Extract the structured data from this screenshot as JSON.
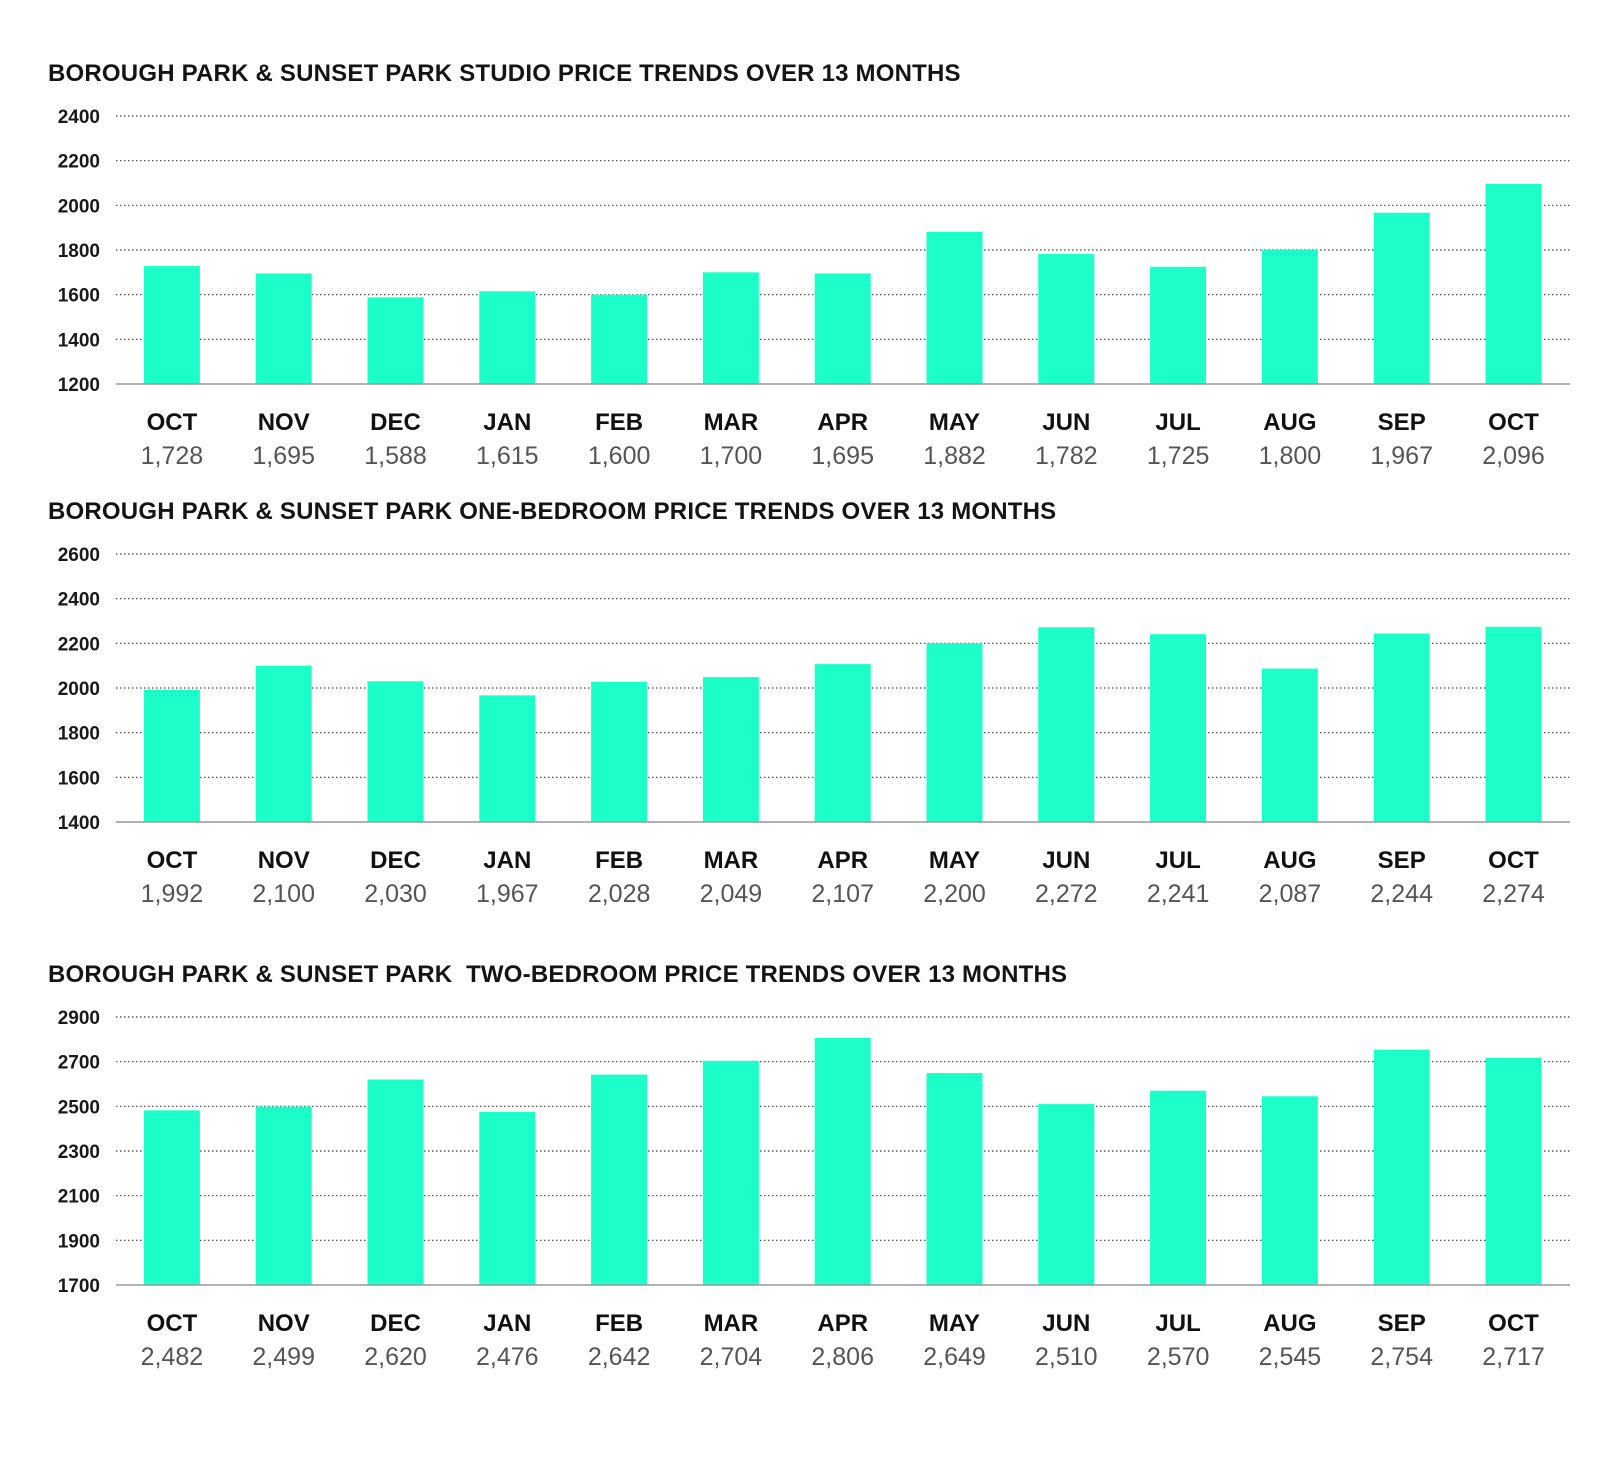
{
  "colors": {
    "bar": "#1dffc8",
    "grid": "#444444",
    "axis": "#999999"
  },
  "chart_data": [
    {
      "type": "bar",
      "title": "BOROUGH PARK & SUNSET PARK STUDIO PRICE TRENDS OVER 13 MONTHS",
      "categories": [
        "OCT",
        "NOV",
        "DEC",
        "JAN",
        "FEB",
        "MAR",
        "APR",
        "MAY",
        "JUN",
        "JUL",
        "AUG",
        "SEP",
        "OCT"
      ],
      "values": [
        1728,
        1695,
        1588,
        1615,
        1600,
        1700,
        1695,
        1882,
        1782,
        1725,
        1800,
        1967,
        2096
      ],
      "value_labels": [
        "1,728",
        "1,695",
        "1,588",
        "1,615",
        "1,600",
        "1,700",
        "1,695",
        "1,882",
        "1,782",
        "1,725",
        "1,800",
        "1,967",
        "2,096"
      ],
      "yticks": [
        1200,
        1400,
        1600,
        1800,
        2000,
        2200,
        2400
      ],
      "ylim": [
        1200,
        2400
      ],
      "xlabel": "",
      "ylabel": "",
      "grid": true
    },
    {
      "type": "bar",
      "title": "BOROUGH PARK & SUNSET PARK ONE-BEDROOM PRICE TRENDS OVER 13 MONTHS",
      "categories": [
        "OCT",
        "NOV",
        "DEC",
        "JAN",
        "FEB",
        "MAR",
        "APR",
        "MAY",
        "JUN",
        "JUL",
        "AUG",
        "SEP",
        "OCT"
      ],
      "values": [
        1992,
        2100,
        2030,
        1967,
        2028,
        2049,
        2107,
        2200,
        2272,
        2241,
        2087,
        2244,
        2274
      ],
      "value_labels": [
        "1,992",
        "2,100",
        "2,030",
        "1,967",
        "2,028",
        "2,049",
        "2,107",
        "2,200",
        "2,272",
        "2,241",
        "2,087",
        "2,244",
        "2,274"
      ],
      "yticks": [
        1400,
        1600,
        1800,
        2000,
        2200,
        2400,
        2600
      ],
      "ylim": [
        1400,
        2600
      ],
      "xlabel": "",
      "ylabel": "",
      "grid": true
    },
    {
      "type": "bar",
      "title": "BOROUGH PARK & SUNSET PARK  TWO-BEDROOM PRICE TRENDS OVER 13 MONTHS",
      "categories": [
        "OCT",
        "NOV",
        "DEC",
        "JAN",
        "FEB",
        "MAR",
        "APR",
        "MAY",
        "JUN",
        "JUL",
        "AUG",
        "SEP",
        "OCT"
      ],
      "values": [
        2482,
        2499,
        2620,
        2476,
        2642,
        2704,
        2806,
        2649,
        2510,
        2570,
        2545,
        2754,
        2717
      ],
      "value_labels": [
        "2,482",
        "2,499",
        "2,620",
        "2,476",
        "2,642",
        "2,704",
        "2,806",
        "2,649",
        "2,510",
        "2,570",
        "2,545",
        "2,754",
        "2,717"
      ],
      "yticks": [
        1700,
        1900,
        2100,
        2300,
        2500,
        2700,
        2900
      ],
      "ylim": [
        1700,
        2900
      ],
      "xlabel": "",
      "ylabel": "",
      "grid": true
    }
  ]
}
